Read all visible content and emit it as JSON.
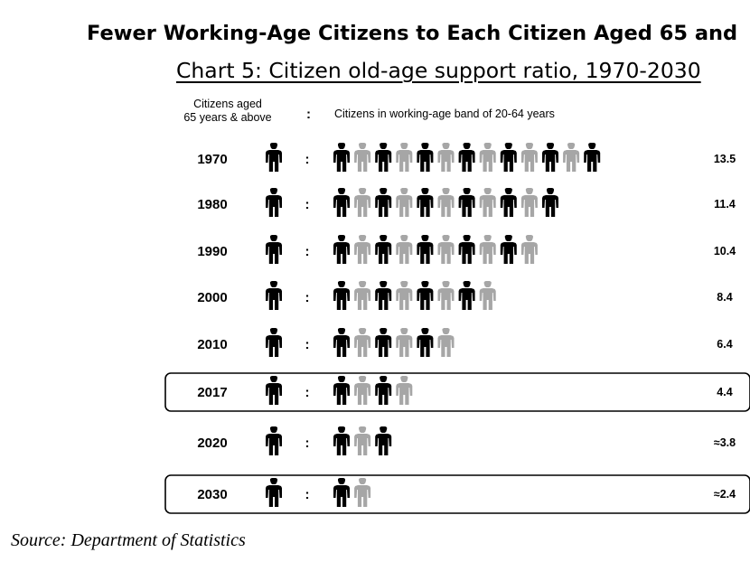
{
  "title": "Fewer Working-Age Citizens to Each Citizen Aged 65 and",
  "subtitle": "Chart 5: Citizen old-age support ratio, 1970-2030",
  "header": {
    "left_line1": "Citizens aged",
    "left_line2": "65 years & above",
    "colon": ":",
    "right": "Citizens in working-age band of 20-64 years"
  },
  "source": "Source: Department of Statistics",
  "colors": {
    "dark": "#000000",
    "light": "#a6a6a6",
    "text": "#000000"
  },
  "chart_data": {
    "type": "pictogram",
    "categories": [
      "1970",
      "1980",
      "1990",
      "2000",
      "2010",
      "2017",
      "2020",
      "2030"
    ],
    "values": [
      13.5,
      11.4,
      10.4,
      8.4,
      6.4,
      4.4,
      3.8,
      2.4
    ],
    "value_labels": [
      "13.5",
      "11.4",
      "10.4",
      "8.4",
      "6.4",
      "4.4",
      "≈3.8",
      "≈2.4"
    ],
    "highlighted": [
      "2017",
      "2030"
    ],
    "icon": "person-icon",
    "separator": ":"
  }
}
